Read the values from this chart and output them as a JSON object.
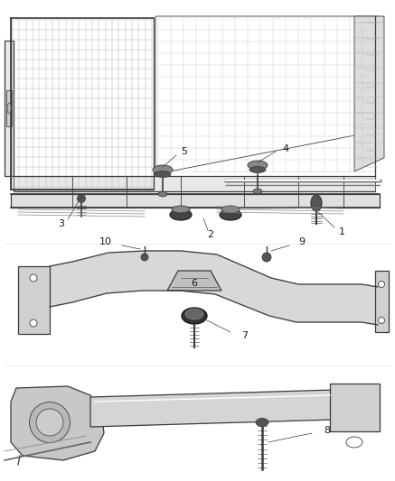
{
  "bg_color": "#ffffff",
  "line_color": "#3a3a3a",
  "label_color": "#1a1a1a",
  "fig_width": 4.37,
  "fig_height": 5.33,
  "dpi": 100,
  "image_b64": ""
}
